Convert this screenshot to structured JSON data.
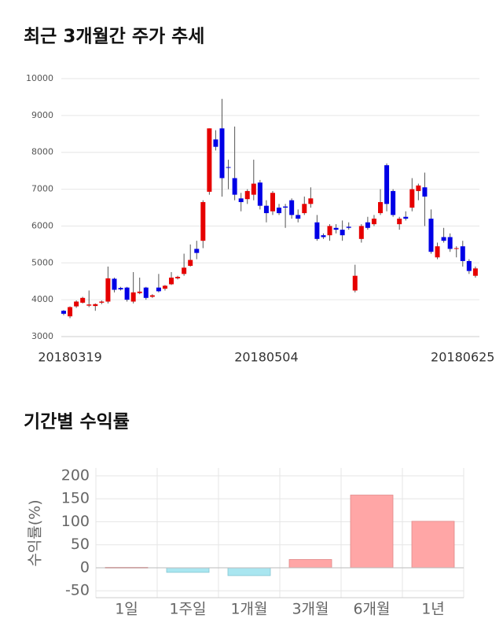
{
  "charts": [
    {
      "type": "candlestick",
      "title": "최근 3개월간 주가 추세",
      "categories": [
        null,
        "20180319",
        null,
        null,
        null,
        null,
        null,
        null,
        null,
        null,
        null,
        null,
        null,
        null,
        null,
        null,
        null,
        null,
        null,
        null,
        null,
        null,
        null,
        null,
        null,
        null,
        null,
        null,
        null,
        null,
        null,
        null,
        "20180504",
        null,
        null,
        null,
        null,
        null,
        null,
        null,
        null,
        null,
        null,
        null,
        null,
        null,
        null,
        null,
        null,
        null,
        null,
        null,
        null,
        null,
        null,
        null,
        null,
        null,
        null,
        null,
        null,
        null,
        null,
        "20180625",
        null,
        null
      ],
      "open": [
        3700,
        3550,
        3820,
        3920,
        3840,
        3830,
        3920,
        3950,
        4570,
        4320,
        4330,
        3950,
        4180,
        4330,
        4080,
        4330,
        4300,
        4420,
        4580,
        4700,
        4920,
        5380,
        5600,
        6930,
        8350,
        8650,
        7600,
        7300,
        6750,
        6730,
        6850,
        7180,
        6550,
        6400,
        6500,
        6530,
        6700,
        6300,
        6350,
        6600,
        6100,
        5750,
        5750,
        5950,
        5900,
        5980,
        4250,
        5650,
        6100,
        6050,
        6350,
        7650,
        6950,
        6050,
        6250,
        6500,
        6950,
        7050,
        6200,
        5150,
        5700,
        5700,
        5380,
        5450,
        5050,
        4650
      ],
      "high": [
        3720,
        3820,
        3980,
        4080,
        4250,
        3900,
        3980,
        4900,
        4600,
        4350,
        4350,
        4750,
        4600,
        4350,
        4150,
        4700,
        4400,
        4750,
        4650,
        5250,
        5500,
        5600,
        6700,
        8650,
        8600,
        9450,
        7800,
        8700,
        6900,
        7000,
        7800,
        7250,
        6700,
        6950,
        6600,
        6600,
        6750,
        6450,
        6800,
        7050,
        6300,
        5800,
        6050,
        6050,
        6150,
        6100,
        4950,
        6050,
        6250,
        6300,
        7000,
        7700,
        7000,
        6250,
        6400,
        7300,
        7150,
        7450,
        6450,
        5550,
        5950,
        5800,
        5450,
        5600,
        5100,
        4900
      ],
      "low": [
        3580,
        3500,
        3780,
        3900,
        3800,
        3700,
        3880,
        3900,
        4200,
        4250,
        3950,
        3900,
        4150,
        4000,
        4050,
        4200,
        4250,
        4400,
        4550,
        4650,
        4900,
        5100,
        5400,
        6850,
        8050,
        6800,
        7000,
        6700,
        6400,
        6600,
        6700,
        6450,
        6100,
        6300,
        6300,
        5950,
        6200,
        6100,
        6300,
        6500,
        5600,
        5650,
        5600,
        5800,
        5600,
        5900,
        4200,
        5550,
        5900,
        6000,
        6300,
        6400,
        6250,
        5900,
        6150,
        6400,
        6700,
        6000,
        5250,
        5100,
        5550,
        5300,
        5150,
        4900,
        4700,
        4600
      ],
      "close": [
        3620,
        3800,
        3950,
        4050,
        3870,
        3880,
        3950,
        4580,
        4270,
        4280,
        4000,
        4200,
        4220,
        4050,
        4120,
        4230,
        4380,
        4600,
        4620,
        4870,
        5080,
        5270,
        6650,
        8650,
        8150,
        7300,
        7580,
        6850,
        6650,
        6950,
        7150,
        6550,
        6350,
        6900,
        6350,
        6500,
        6300,
        6200,
        6600,
        6750,
        5650,
        5700,
        6000,
        5900,
        5750,
        5950,
        4650,
        6000,
        5950,
        6200,
        6650,
        6600,
        6300,
        6200,
        6200,
        7000,
        7100,
        6800,
        5300,
        5450,
        5600,
        5380,
        5400,
        5050,
        4780,
        4850
      ],
      "up_color": "#e60000",
      "down_color": "#0000e6",
      "ylim": [
        3000,
        10000
      ],
      "yticks": [
        3000,
        4000,
        5000,
        6000,
        7000,
        8000,
        9000,
        10000
      ],
      "grid": true
    },
    {
      "type": "bar",
      "title": "기간별 수익률",
      "y_label": "수익률(%)",
      "categories": [
        "1일",
        "1주일",
        "1개월",
        "3개월",
        "6개월",
        "1년"
      ],
      "values": [
        1,
        -10,
        -17,
        18,
        158,
        101
      ],
      "positive_color": "#ffa6a6",
      "negative_color": "#a9e6f0",
      "ylim": [
        -65,
        217
      ],
      "yticks": [
        -50,
        0,
        50,
        100,
        150,
        200
      ],
      "grid": true
    }
  ]
}
